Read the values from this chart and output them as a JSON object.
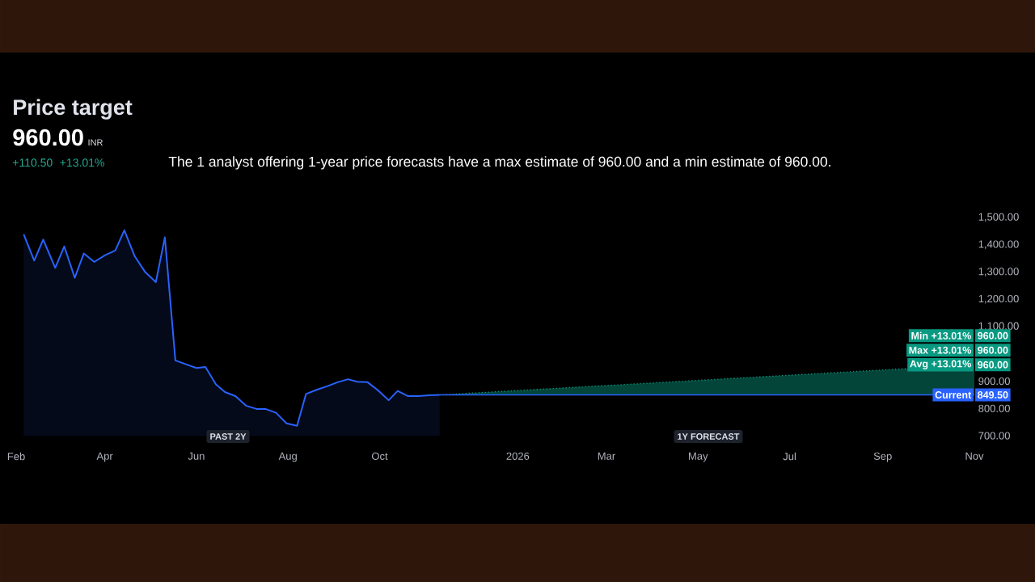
{
  "chart_data": {
    "type": "area",
    "title": "Price target",
    "annotations": [
      "960.00",
      "INR",
      "+110.50",
      "+13.01%",
      "The 1 analyst offering 1-year price forecasts have a max estimate of 960.00 and a min estimate of 960.00.",
      "PAST 2Y",
      "1Y FORECAST",
      {
        "text": "Min +13.01%",
        "x": "2026-11-01",
        "y": 960
      },
      {
        "text": "960.00",
        "x": "2026-11-01",
        "y": 960
      },
      {
        "text": "Max +13.01%",
        "x": "2026-11-01",
        "y": 960
      },
      {
        "text": "960.00",
        "x": "2026-11-01",
        "y": 960
      },
      {
        "text": "Avg +13.01%",
        "x": "2026-11-01",
        "y": 960
      },
      {
        "text": "960.00",
        "x": "2026-11-01",
        "y": 960
      },
      {
        "text": "Current",
        "x": "2026-11-01",
        "y": 849.5
      },
      {
        "text": "849.50",
        "x": "2026-11-01",
        "y": 849.5
      }
    ],
    "series": [
      {
        "type": "area",
        "color": "#2962ff",
        "x": [
          "2025-02-06",
          "2025-02-13",
          "2025-02-19",
          "2025-02-27",
          "2025-03-05",
          "2025-03-12",
          "2025-03-18",
          "2025-03-25",
          "2025-04-01",
          "2025-04-08",
          "2025-04-14",
          "2025-04-21",
          "2025-04-28",
          "2025-05-05",
          "2025-05-11",
          "2025-05-18",
          "2025-05-25",
          "2025-06-01",
          "2025-06-07",
          "2025-06-14",
          "2025-06-20",
          "2025-06-27",
          "2025-07-04",
          "2025-07-11",
          "2025-07-17",
          "2025-07-24",
          "2025-07-31",
          "2025-08-07",
          "2025-08-13",
          "2025-08-20",
          "2025-08-27",
          "2025-09-03",
          "2025-09-10",
          "2025-09-16",
          "2025-09-23",
          "2025-09-30",
          "2025-10-07",
          "2025-10-13",
          "2025-10-20",
          "2025-10-27",
          "2025-11-03",
          "2025-11-10"
        ],
        "values": [
          1438,
          1342,
          1419,
          1315,
          1394,
          1279,
          1368,
          1337,
          1361,
          1379,
          1453,
          1357,
          1299,
          1263,
          1427,
          976,
          962,
          948,
          952,
          888,
          860,
          845,
          810,
          798,
          798,
          784,
          745,
          736,
          853,
          868,
          881,
          896,
          907,
          898,
          896,
          866,
          830,
          864,
          845,
          845,
          848,
          849.5
        ]
      },
      {
        "type": "area",
        "color": "#089981",
        "line_style": "dotted",
        "x": [
          "2025-11-10",
          "2026-11-01"
        ],
        "values": [
          849.5,
          960
        ]
      },
      {
        "type": "line",
        "color": "#2962ff",
        "x": [
          "2025-11-10",
          "2026-11-01"
        ],
        "values": [
          849.5,
          849.5
        ]
      }
    ],
    "xlim": [
      "2025-02-01",
      "2026-11-01"
    ],
    "ylim": [
      700,
      1500
    ],
    "xticks": [
      {
        "value": "2025-02-01",
        "label": "Feb"
      },
      {
        "value": "2025-04-01",
        "label": "Apr"
      },
      {
        "value": "2025-06-01",
        "label": "Jun"
      },
      {
        "value": "2025-08-01",
        "label": "Aug"
      },
      {
        "value": "2025-10-01",
        "label": "Oct"
      },
      {
        "value": "2026-01-01",
        "label": "2026"
      },
      {
        "value": "2026-03-01",
        "label": "Mar"
      },
      {
        "value": "2026-05-01",
        "label": "May"
      },
      {
        "value": "2026-07-01",
        "label": "Jul"
      },
      {
        "value": "2026-09-01",
        "label": "Sep"
      },
      {
        "value": "2026-11-01",
        "label": "Nov"
      }
    ],
    "yticks": [
      {
        "value": 700,
        "label": "700.00"
      },
      {
        "value": 800,
        "label": "800.00"
      },
      {
        "value": 900,
        "label": "900.00"
      },
      {
        "value": 1100,
        "label": "1,100.00"
      },
      {
        "value": 1200,
        "label": "1,200.00"
      },
      {
        "value": 1300,
        "label": "1,300.00"
      },
      {
        "value": 1400,
        "label": "1,400.00"
      },
      {
        "value": 1500,
        "label": "1,500.00"
      }
    ]
  }
}
